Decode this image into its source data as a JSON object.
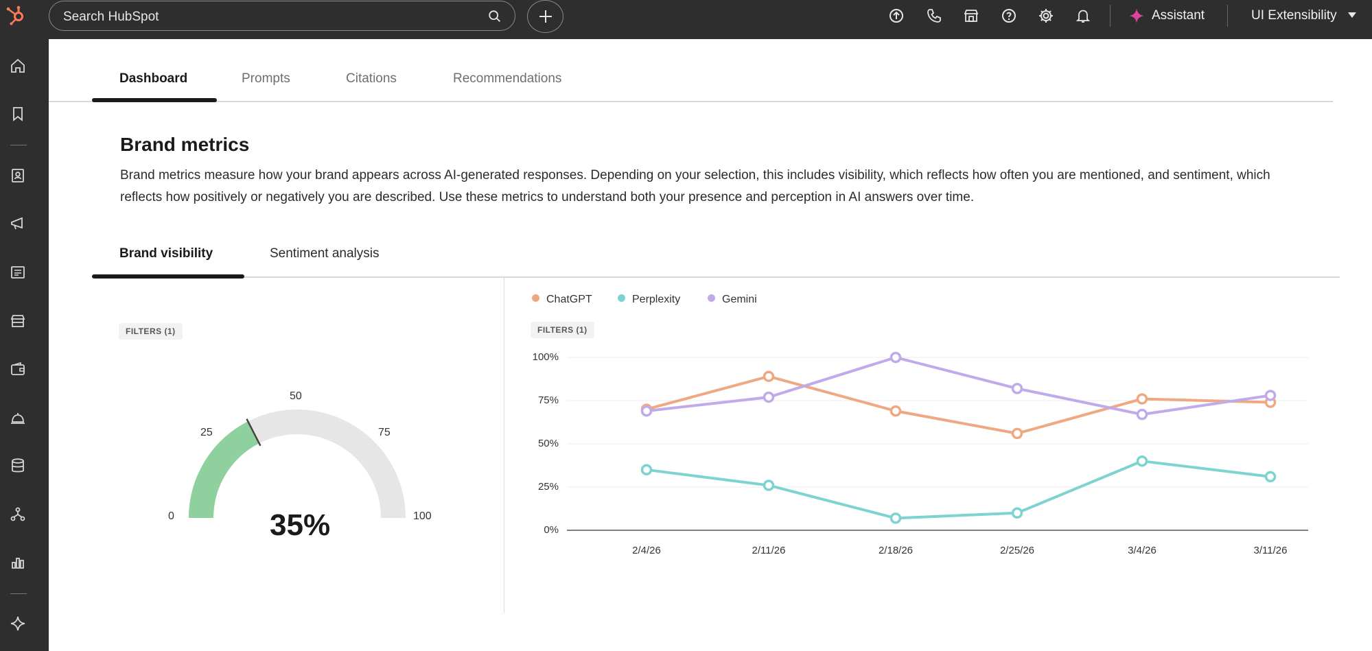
{
  "topbar": {
    "search_placeholder": "Search HubSpot",
    "assistant_label": "Assistant",
    "account_label": "UI Extensibility"
  },
  "tabs": [
    {
      "label": "Dashboard",
      "active": true
    },
    {
      "label": "Prompts",
      "active": false
    },
    {
      "label": "Citations",
      "active": false
    },
    {
      "label": "Recommendations",
      "active": false
    }
  ],
  "section": {
    "title": "Brand metrics",
    "description": "Brand metrics measure how your brand appears across AI-generated responses. Depending on your selection, this includes visibility, which reflects how often you are mentioned, and sentiment, which reflects how positively or negatively you are described. Use these metrics to understand both your presence and perception in AI answers over time."
  },
  "subtabs": [
    {
      "label": "Brand visibility",
      "active": true
    },
    {
      "label": "Sentiment analysis",
      "active": false
    }
  ],
  "gauge": {
    "filter_label": "FILTERS (1)",
    "ticks": [
      "0",
      "25",
      "50",
      "75",
      "100"
    ],
    "value": 35,
    "value_label": "35%",
    "fill_color": "#8fd19e",
    "track_color": "#e6e6e6"
  },
  "chart_filter_label": "FILTERS (1)",
  "colors": {
    "hubspot_orange": "#ff7a59",
    "assistant_pink": "#e0449a"
  },
  "chart_data": {
    "type": "line",
    "x": [
      "2/4/26",
      "2/11/26",
      "2/18/26",
      "2/25/26",
      "3/4/26",
      "3/11/26"
    ],
    "yticks": [
      "0%",
      "25%",
      "50%",
      "75%",
      "100%"
    ],
    "ylim": [
      0,
      100
    ],
    "legend_position": "top-left",
    "grid": true,
    "series": [
      {
        "name": "ChatGPT",
        "color": "#f0a882",
        "values": [
          70,
          89,
          69,
          56,
          76,
          74
        ]
      },
      {
        "name": "Perplexity",
        "color": "#7dd3cf",
        "values": [
          35,
          26,
          7,
          10,
          40,
          31
        ]
      },
      {
        "name": "Gemini",
        "color": "#bfaaea",
        "values": [
          69,
          77,
          100,
          82,
          67,
          78
        ]
      }
    ]
  }
}
